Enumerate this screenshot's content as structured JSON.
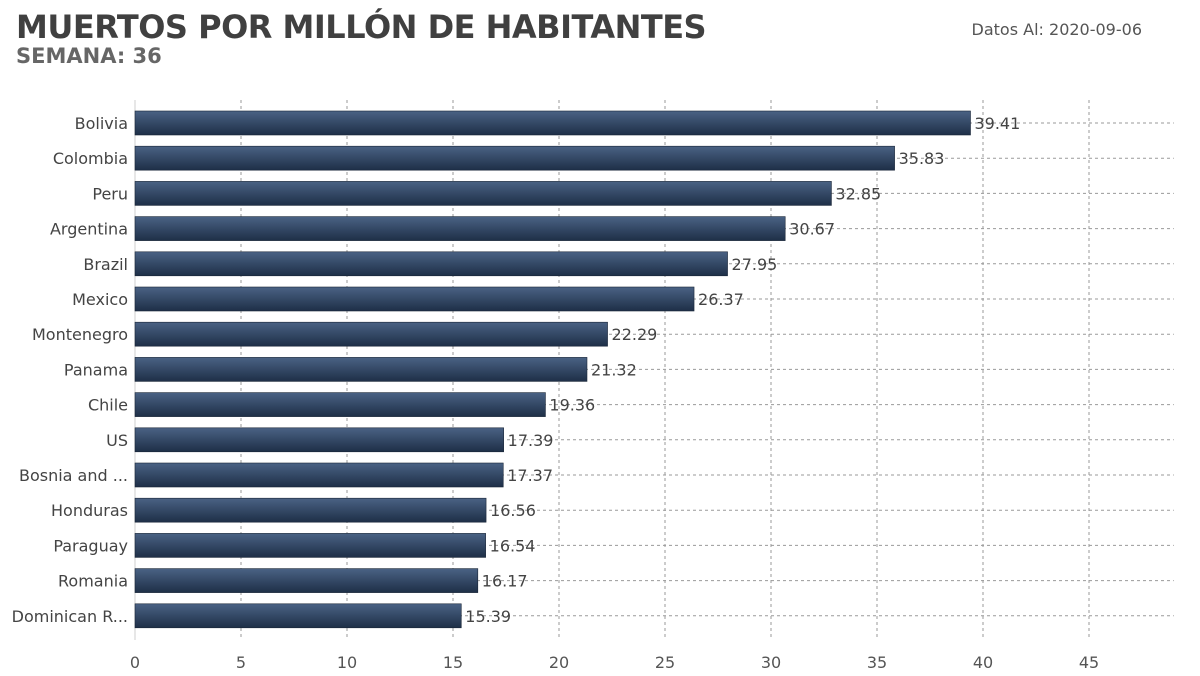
{
  "header": {
    "title": "MUERTOS POR MILLÓN DE HABITANTES",
    "subtitle": "SEMANA: 36",
    "date_label": "Datos Al: 2020-09-06"
  },
  "colors": {
    "bar_top": "#4a6284",
    "bar_bottom": "#1e2f47",
    "grid": "#9a9a9a"
  },
  "chart_data": {
    "type": "bar",
    "orientation": "horizontal",
    "title": "MUERTOS POR MILLÓN DE HABITANTES",
    "subtitle": "SEMANA: 36",
    "xlabel": "",
    "ylabel": "",
    "xlim": [
      0,
      49
    ],
    "x_ticks": [
      0,
      5,
      10,
      15,
      20,
      25,
      30,
      35,
      40,
      45
    ],
    "grid": true,
    "categories": [
      "Bolivia",
      "Colombia",
      "Peru",
      "Argentina",
      "Brazil",
      "Mexico",
      "Montenegro",
      "Panama",
      "Chile",
      "US",
      "Bosnia and ...",
      "Honduras",
      "Paraguay",
      "Romania",
      "Dominican R..."
    ],
    "values": [
      39.41,
      35.83,
      32.85,
      30.67,
      27.95,
      26.37,
      22.29,
      21.32,
      19.36,
      17.39,
      17.37,
      16.56,
      16.54,
      16.17,
      15.39
    ],
    "value_labels": [
      "39.41",
      "35.83",
      "32.85",
      "30.67",
      "27.95",
      "26.37",
      "22.29",
      "21.32",
      "19.36",
      "17.39",
      "17.37",
      "16.56",
      "16.54",
      "16.17",
      "15.39"
    ]
  }
}
